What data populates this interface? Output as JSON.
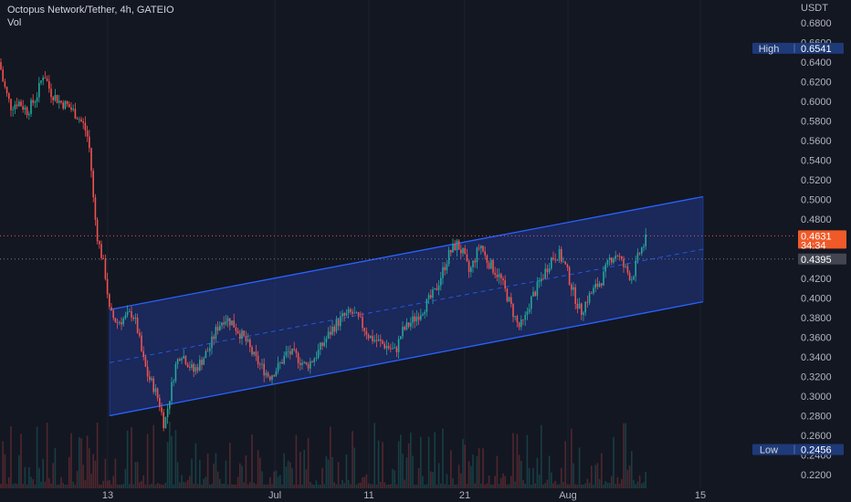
{
  "legend": {
    "title": "Octopus Network/Tether, 4h, GATEIO",
    "volume_label": "Vol"
  },
  "price_axis": {
    "currency": "USDT",
    "ticks": [
      "0.6800",
      "0.6600",
      "0.6400",
      "0.6200",
      "0.6000",
      "0.5800",
      "0.5600",
      "0.5400",
      "0.5200",
      "0.5000",
      "0.4800",
      "0.4600",
      "0.4400",
      "0.4200",
      "0.4000",
      "0.3800",
      "0.3600",
      "0.3400",
      "0.3200",
      "0.3000",
      "0.2800",
      "0.2600",
      "0.2400",
      "0.2200"
    ]
  },
  "time_axis": {
    "labels": [
      "13",
      "Jul",
      "11",
      "21",
      "Aug",
      "15"
    ]
  },
  "markers": {
    "high": {
      "label": "High",
      "value": "0.6541"
    },
    "low": {
      "label": "Low",
      "value": "0.2456"
    },
    "last_price": {
      "value": "0.4631",
      "countdown": "34:34"
    },
    "crosshair_price": {
      "value": "0.4395"
    }
  },
  "colors": {
    "background": "#131722",
    "up": "#26a69a",
    "down": "#ef5350",
    "channel_line": "#2962ff",
    "channel_fill": "#1e2f6e",
    "badge_high_low": "#1e3a78",
    "last_price_badge": "#f05a28",
    "crosshair_badge": "#434651",
    "grid": "#1c2030"
  },
  "chart_data": {
    "type": "candlestick",
    "symbol": "Octopus Network/Tether",
    "timeframe": "4h",
    "exchange": "GATEIO",
    "ylim": [
      0.21,
      0.695
    ],
    "grid": false,
    "high": 0.6541,
    "low": 0.2456,
    "last": 0.4631,
    "x_axis_labels": [
      "13",
      "Jul",
      "11",
      "21",
      "Aug",
      "15"
    ],
    "price_path": [
      [
        0,
        0.64
      ],
      [
        2,
        0.625
      ],
      [
        5,
        0.615
      ],
      [
        8,
        0.605
      ],
      [
        12,
        0.595
      ],
      [
        20,
        0.6
      ],
      [
        30,
        0.59
      ],
      [
        40,
        0.605
      ],
      [
        48,
        0.63
      ],
      [
        55,
        0.61
      ],
      [
        65,
        0.6
      ],
      [
        75,
        0.595
      ],
      [
        85,
        0.585
      ],
      [
        92,
        0.575
      ],
      [
        97,
        0.56
      ],
      [
        100,
        0.53
      ],
      [
        103,
        0.49
      ],
      [
        107,
        0.46
      ],
      [
        112,
        0.44
      ],
      [
        116,
        0.42
      ],
      [
        120,
        0.385
      ],
      [
        128,
        0.375
      ],
      [
        138,
        0.38
      ],
      [
        145,
        0.385
      ],
      [
        150,
        0.37
      ],
      [
        156,
        0.34
      ],
      [
        162,
        0.32
      ],
      [
        168,
        0.31
      ],
      [
        174,
        0.295
      ],
      [
        180,
        0.27
      ],
      [
        186,
        0.3
      ],
      [
        192,
        0.33
      ],
      [
        198,
        0.345
      ],
      [
        205,
        0.335
      ],
      [
        212,
        0.325
      ],
      [
        220,
        0.335
      ],
      [
        230,
        0.35
      ],
      [
        238,
        0.37
      ],
      [
        246,
        0.38
      ],
      [
        254,
        0.375
      ],
      [
        262,
        0.365
      ],
      [
        270,
        0.355
      ],
      [
        278,
        0.34
      ],
      [
        286,
        0.33
      ],
      [
        295,
        0.32
      ],
      [
        305,
        0.33
      ],
      [
        315,
        0.345
      ],
      [
        325,
        0.34
      ],
      [
        335,
        0.33
      ],
      [
        345,
        0.34
      ],
      [
        355,
        0.355
      ],
      [
        365,
        0.37
      ],
      [
        375,
        0.38
      ],
      [
        385,
        0.385
      ],
      [
        395,
        0.375
      ],
      [
        405,
        0.36
      ],
      [
        415,
        0.355
      ],
      [
        425,
        0.35
      ],
      [
        433,
        0.345
      ],
      [
        440,
        0.365
      ],
      [
        450,
        0.375
      ],
      [
        460,
        0.385
      ],
      [
        468,
        0.395
      ],
      [
        476,
        0.405
      ],
      [
        484,
        0.425
      ],
      [
        492,
        0.445
      ],
      [
        500,
        0.455
      ],
      [
        507,
        0.445
      ],
      [
        514,
        0.425
      ],
      [
        520,
        0.44
      ],
      [
        526,
        0.455
      ],
      [
        532,
        0.44
      ],
      [
        540,
        0.43
      ],
      [
        548,
        0.42
      ],
      [
        556,
        0.4
      ],
      [
        562,
        0.385
      ],
      [
        568,
        0.37
      ],
      [
        574,
        0.375
      ],
      [
        580,
        0.395
      ],
      [
        588,
        0.41
      ],
      [
        596,
        0.425
      ],
      [
        604,
        0.44
      ],
      [
        612,
        0.445
      ],
      [
        620,
        0.43
      ],
      [
        628,
        0.405
      ],
      [
        636,
        0.385
      ],
      [
        644,
        0.4
      ],
      [
        652,
        0.41
      ],
      [
        660,
        0.42
      ],
      [
        668,
        0.44
      ],
      [
        676,
        0.445
      ],
      [
        684,
        0.43
      ],
      [
        692,
        0.42
      ],
      [
        700,
        0.445
      ],
      [
        708,
        0.46
      ]
    ],
    "channel": {
      "start": {
        "x": 120,
        "upper": 0.388,
        "lower": 0.28
      },
      "end": {
        "x": 770,
        "upper": 0.503,
        "lower": 0.396
      }
    }
  }
}
